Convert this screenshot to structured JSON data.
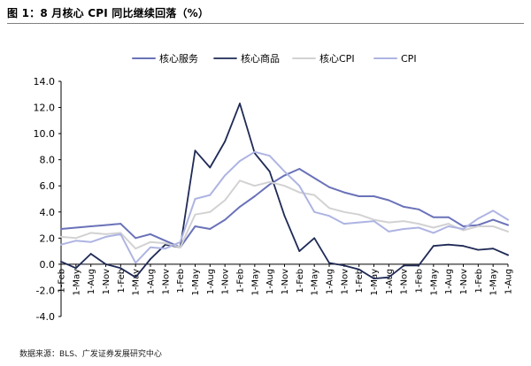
{
  "title": "图 1：8 月核心 CPI 同比继续回落（%）",
  "source": "数据来源：BLS、广发证券发展研究中心",
  "chart_data": {
    "type": "line",
    "ylim": [
      -4,
      14
    ],
    "yticks": [
      -4,
      -2,
      0,
      2,
      4,
      6,
      8,
      10,
      12,
      14
    ],
    "y_tick_labels": [
      "-4.0",
      "-2.0",
      "0.0",
      "2.0",
      "4.0",
      "6.0",
      "8.0",
      "10.0",
      "12.0",
      "14.0"
    ],
    "x": [
      "2019-02",
      "2019-05",
      "2019-08",
      "2019-11",
      "2020-02",
      "2020-05",
      "2020-08",
      "2020-11",
      "2021-02",
      "2021-05",
      "2021-08",
      "2021-11",
      "2022-02",
      "2022-05",
      "2022-08",
      "2022-11",
      "2023-02",
      "2023-05",
      "2023-08",
      "2023-11",
      "2024-02",
      "2024-05",
      "2024-08",
      "2024-11",
      "2025-02",
      "2025-05",
      "2025-08",
      "2025-11",
      "2026-02",
      "2026-05",
      "2026-08"
    ],
    "x_tick_labels": [
      "1-Feb",
      "1-May",
      "1-Aug",
      "1-Nov",
      "1-Feb",
      "1-May",
      "1-Aug",
      "1-Nov",
      "1-Feb",
      "1-May",
      "1-Aug",
      "1-Nov",
      "1-Feb",
      "1-May",
      "1-Aug",
      "1-Nov",
      "1-Feb",
      "1-May",
      "1-Aug",
      "1-Nov",
      "1-Feb",
      "1-May",
      "1-Aug",
      "1-Nov",
      "1-Feb",
      "1-May",
      "1-Aug",
      "1-Nov",
      "1-Feb",
      "1-May",
      "1-Aug"
    ],
    "grid": false,
    "legend_position": "top",
    "series": [
      {
        "name": "核心服务",
        "color": "#6a72b8",
        "values": [
          2.7,
          2.8,
          2.9,
          3.0,
          3.1,
          2.0,
          2.3,
          1.8,
          1.3,
          2.9,
          2.7,
          3.4,
          4.4,
          5.2,
          6.1,
          6.8,
          7.3,
          6.6,
          5.9,
          5.5,
          5.2,
          5.2,
          4.9,
          4.4,
          4.2,
          3.6,
          3.6,
          2.9,
          3.0,
          3.4,
          3.0
        ]
      },
      {
        "name": "核心商品",
        "color": "#1f2a56",
        "values": [
          0.2,
          -0.3,
          0.8,
          0.0,
          -0.3,
          -1.0,
          0.4,
          1.5,
          1.3,
          8.7,
          7.4,
          9.4,
          12.3,
          8.5,
          7.1,
          3.7,
          1.0,
          2.0,
          0.1,
          -0.1,
          -0.4,
          -1.1,
          -1.0,
          -0.1,
          -0.1,
          1.4,
          1.5,
          1.4,
          1.1,
          1.2,
          0.7
        ]
      },
      {
        "name": "核心CPI",
        "color": "#d2d2d2",
        "values": [
          2.1,
          2.0,
          2.4,
          2.3,
          2.4,
          1.2,
          1.7,
          1.6,
          1.3,
          3.8,
          4.0,
          4.9,
          6.4,
          6.0,
          6.3,
          6.0,
          5.5,
          5.3,
          4.3,
          4.0,
          3.8,
          3.4,
          3.2,
          3.3,
          3.1,
          2.8,
          3.1,
          2.6,
          2.9,
          2.9,
          2.5
        ]
      },
      {
        "name": "CPI",
        "color": "#aeb4e2",
        "values": [
          1.5,
          1.8,
          1.7,
          2.1,
          2.3,
          0.1,
          1.3,
          1.2,
          1.7,
          5.0,
          5.3,
          6.8,
          7.9,
          8.6,
          8.3,
          7.1,
          6.0,
          4.0,
          3.7,
          3.1,
          3.2,
          3.3,
          2.5,
          2.7,
          2.8,
          2.4,
          2.9,
          2.7,
          3.5,
          4.1,
          3.4
        ]
      }
    ]
  }
}
